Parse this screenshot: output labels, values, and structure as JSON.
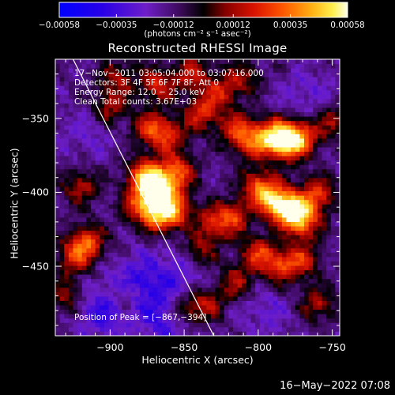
{
  "chart_data": {
    "type": "heatmap",
    "title": "Reconstructed RHESSI Image",
    "xlabel": "Heliocentric X (arcsec)",
    "ylabel": "Heliocentric Y (arcsec)",
    "xlim": [
      -937,
      -745
    ],
    "ylim": [
      -497,
      -310
    ],
    "x_ticks": [
      -900,
      -850,
      -800,
      -750
    ],
    "x_tick_labels": [
      "−900",
      "−850",
      "−800",
      "−750"
    ],
    "y_ticks": [
      -350,
      -400,
      -450
    ],
    "y_tick_labels": [
      "−350",
      "−400",
      "−450"
    ],
    "colorbar": {
      "min": -0.00058,
      "max": 0.00058,
      "tick_values": [
        -0.00058,
        -0.00035,
        -0.00012,
        0.00012,
        0.00035,
        0.00058
      ],
      "tick_labels": [
        "−0.00058",
        "−0.00035",
        "−0.00012",
        "0.00012",
        "0.00035",
        "0.00058"
      ],
      "units": "(photons cm⁻² s⁻¹ asec⁻²)"
    },
    "annotations": [
      "17−Nov−2011 03:05:04.000 to 03:07:16.000",
      "Detectors: 3F 4F 5F 6F 7F 8F, Att 0",
      "Energy Range: 12.0 − 25.0 keV",
      "Clean    Total counts: 3.67E+03"
    ],
    "peak_label": "Position of Peak = [−867,−394]",
    "peak_position": [
      -867,
      -394
    ],
    "limb_line": {
      "x": [
        -925,
        -830
      ],
      "y": [
        -310,
        -497
      ]
    },
    "bright_sources": [
      {
        "x": -868,
        "y": -398,
        "intensity": 1.0
      },
      {
        "x": -876,
        "y": -388,
        "intensity": 0.85
      },
      {
        "x": -855,
        "y": -385,
        "intensity": 0.7
      },
      {
        "x": -866,
        "y": -415,
        "intensity": 0.75
      },
      {
        "x": -855,
        "y": -410,
        "intensity": 0.55
      },
      {
        "x": -880,
        "y": -408,
        "intensity": 0.55
      },
      {
        "x": -873,
        "y": -355,
        "intensity": 0.55
      },
      {
        "x": -860,
        "y": -360,
        "intensity": 0.5
      },
      {
        "x": -868,
        "y": -325,
        "intensity": 0.55
      },
      {
        "x": -900,
        "y": -340,
        "intensity": 0.45
      },
      {
        "x": -895,
        "y": -320,
        "intensity": 0.4
      },
      {
        "x": -838,
        "y": -345,
        "intensity": 0.55
      },
      {
        "x": -826,
        "y": -330,
        "intensity": 0.45
      },
      {
        "x": -845,
        "y": -318,
        "intensity": 0.5
      },
      {
        "x": -815,
        "y": -355,
        "intensity": 0.5
      },
      {
        "x": -805,
        "y": -365,
        "intensity": 0.55
      },
      {
        "x": -790,
        "y": -360,
        "intensity": 0.8
      },
      {
        "x": -780,
        "y": -365,
        "intensity": 0.85
      },
      {
        "x": -770,
        "y": -360,
        "intensity": 0.6
      },
      {
        "x": -800,
        "y": -395,
        "intensity": 0.7
      },
      {
        "x": -790,
        "y": -405,
        "intensity": 0.75
      },
      {
        "x": -780,
        "y": -410,
        "intensity": 0.9
      },
      {
        "x": -770,
        "y": -418,
        "intensity": 0.8
      },
      {
        "x": -760,
        "y": -400,
        "intensity": 0.6
      },
      {
        "x": -815,
        "y": -415,
        "intensity": 0.6
      },
      {
        "x": -800,
        "y": -440,
        "intensity": 0.6
      },
      {
        "x": -785,
        "y": -450,
        "intensity": 0.55
      },
      {
        "x": -770,
        "y": -445,
        "intensity": 0.5
      },
      {
        "x": -815,
        "y": -460,
        "intensity": 0.45
      },
      {
        "x": -830,
        "y": -420,
        "intensity": 0.55
      },
      {
        "x": -840,
        "y": -440,
        "intensity": 0.5
      },
      {
        "x": -835,
        "y": -475,
        "intensity": 0.45
      },
      {
        "x": -850,
        "y": -480,
        "intensity": 0.5
      },
      {
        "x": -915,
        "y": -433,
        "intensity": 0.65
      },
      {
        "x": -925,
        "y": -443,
        "intensity": 0.5
      },
      {
        "x": -920,
        "y": -395,
        "intensity": 0.45
      },
      {
        "x": -930,
        "y": -470,
        "intensity": 0.4
      },
      {
        "x": -890,
        "y": -470,
        "intensity": 0.35
      },
      {
        "x": -760,
        "y": -475,
        "intensity": 0.45
      },
      {
        "x": -750,
        "y": -350,
        "intensity": 0.4
      },
      {
        "x": -810,
        "y": -320,
        "intensity": 0.4
      }
    ],
    "cool_regions": [
      {
        "x": -880,
        "y": -462,
        "depth": 0.95
      },
      {
        "x": -860,
        "y": -485,
        "depth": 0.9
      },
      {
        "x": -905,
        "y": -480,
        "depth": 0.8
      },
      {
        "x": -848,
        "y": -450,
        "depth": 0.6
      },
      {
        "x": -800,
        "y": -410,
        "depth": 0.35
      },
      {
        "x": -765,
        "y": -335,
        "depth": 0.45
      },
      {
        "x": -915,
        "y": -360,
        "depth": 0.35
      },
      {
        "x": -795,
        "y": -480,
        "depth": 0.4
      }
    ],
    "grid": false,
    "legend": "none"
  },
  "timestamp": "16−May−2022 07:08"
}
